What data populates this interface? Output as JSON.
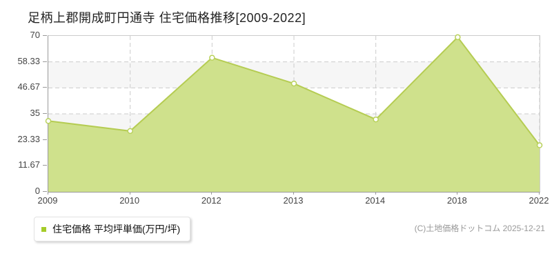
{
  "title": "足柄上郡開成町円通寺 住宅価格推移[2009-2022]",
  "legend": {
    "label": "住宅価格 平均坪単価(万円/坪)",
    "marker_color": "#a5cc29"
  },
  "copyright": "(C)土地価格ドットコム 2025-12-21",
  "chart_data": {
    "type": "area",
    "title": "足柄上郡開成町円通寺 住宅価格推移[2009-2022]",
    "categories": [
      "2009",
      "2010",
      "2012",
      "2013",
      "2014",
      "2018",
      "2022"
    ],
    "series": [
      {
        "name": "住宅価格 平均坪単価(万円/坪)",
        "values": [
          31.8,
          27.3,
          60.2,
          48.6,
          32.5,
          69.4,
          20.9
        ]
      }
    ],
    "xlabel": "",
    "ylabel": "",
    "ylim": [
      0,
      70
    ],
    "yticks": [
      0,
      11.67,
      23.33,
      35,
      46.67,
      58.33,
      70
    ],
    "ytick_labels": [
      "0",
      "11.67",
      "23.33",
      "35",
      "46.67",
      "58.33",
      "70"
    ],
    "grid": true,
    "grid_style": "dashed",
    "legend_position": "bottom-left",
    "colors": {
      "fill": "#cfe18c",
      "line": "#b5cc52",
      "marker_fill": "#ffffff",
      "marker_stroke": "#b9d15b",
      "band_alt": "#f6f6f6",
      "gridline": "#cccccc"
    }
  }
}
